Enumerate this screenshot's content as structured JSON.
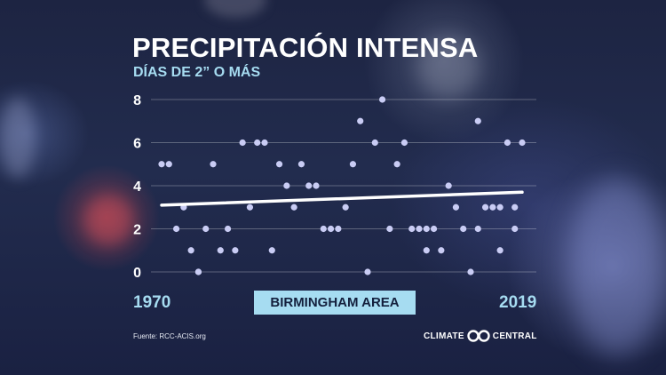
{
  "title": "PRECIPITACIÓN INTENSA",
  "subtitle": "DÍAS DE 2” O MÁS",
  "location_label": "BIRMINGHAM AREA",
  "year_start": "1970",
  "year_end": "2019",
  "source": "Fuente: RCC-ACIS.org",
  "brand": {
    "left": "CLIMATE",
    "right": "CENTRAL",
    "logo_icon": "climate-central-logo-icon"
  },
  "colors": {
    "points": "#c9ccf4",
    "trend": "#ffffff",
    "accent": "#a6dcf1",
    "label_text": "#14203d"
  },
  "chart_data": {
    "type": "scatter",
    "title": "PRECIPITACIÓN INTENSA",
    "subtitle": "DÍAS DE 2” O MÁS",
    "xlabel": "",
    "ylabel": "",
    "xlim": [
      1970,
      2019
    ],
    "ylim": [
      0,
      8
    ],
    "yticks": [
      0,
      2,
      4,
      6,
      8
    ],
    "grid": true,
    "x": [
      1970,
      1971,
      1972,
      1973,
      1974,
      1975,
      1976,
      1977,
      1978,
      1979,
      1980,
      1981,
      1982,
      1983,
      1984,
      1985,
      1986,
      1987,
      1988,
      1989,
      1990,
      1991,
      1992,
      1993,
      1994,
      1995,
      1996,
      1997,
      1998,
      1999,
      2000,
      2001,
      2002,
      2003,
      2004,
      2005,
      2006,
      2007,
      2008,
      2009,
      2010,
      2011,
      2012,
      2013,
      2014,
      2015,
      2016,
      2017,
      2018,
      2019
    ],
    "y": [
      5,
      5,
      2,
      3,
      1,
      0,
      2,
      5,
      1,
      2,
      1,
      6,
      3,
      6,
      6,
      1,
      5,
      4,
      3,
      5,
      4,
      4,
      2,
      2,
      2,
      3,
      5,
      7,
      0,
      6,
      8,
      2,
      5,
      6,
      2,
      2,
      1,
      2,
      1,
      4,
      3,
      2,
      0,
      2,
      3,
      3,
      1,
      6,
      3,
      6
    ],
    "extra_points": [
      [
        1975,
        0
      ],
      [
        2006,
        2
      ],
      [
        2013,
        7
      ],
      [
        2016,
        3
      ],
      [
        2018,
        2
      ]
    ],
    "trend": {
      "start": [
        1970,
        3.1
      ],
      "end": [
        2019,
        3.7
      ]
    }
  }
}
